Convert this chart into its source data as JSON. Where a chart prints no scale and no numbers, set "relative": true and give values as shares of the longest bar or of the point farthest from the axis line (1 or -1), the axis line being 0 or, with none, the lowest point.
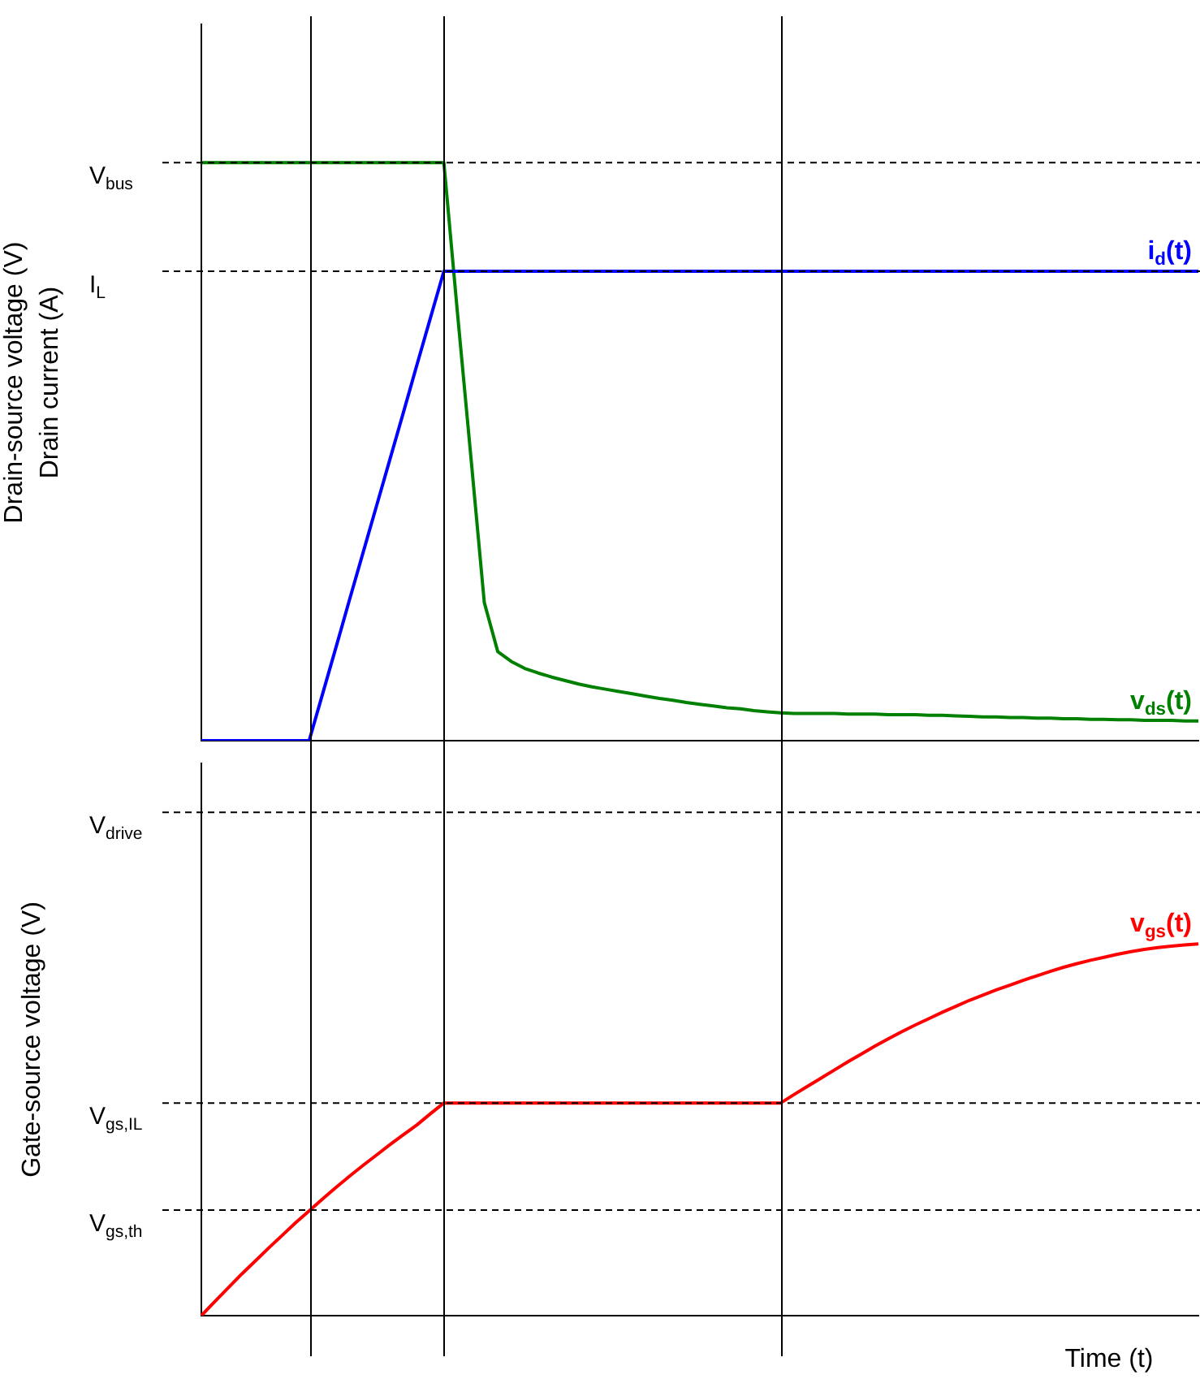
{
  "chart_data": [
    {
      "type": "line",
      "ylabel": "Drain-source voltage (V)\nDrain current (A)",
      "relative": true,
      "tick_labels": false,
      "legend": false,
      "grid": false,
      "marker": "none",
      "line_style": "solid",
      "categories": [
        null,
        null,
        null,
        null,
        null,
        null,
        null,
        null,
        null,
        null,
        null,
        null,
        null,
        null,
        null,
        null,
        null,
        null,
        null,
        null,
        null,
        null,
        null,
        null,
        null,
        null,
        null,
        null,
        null,
        null,
        null,
        null,
        null,
        null,
        null,
        null,
        null,
        null,
        null,
        null,
        null,
        null,
        null,
        null,
        null,
        null,
        null,
        null,
        null,
        null,
        null,
        null,
        null,
        null,
        null,
        null,
        null,
        null,
        null,
        null,
        null,
        null,
        null,
        null,
        null,
        null,
        null,
        null,
        null,
        null,
        null,
        null,
        null,
        null,
        null
      ],
      "series": [
        {
          "name": "i$_{d}$(t)",
          "color": "#0000ff",
          "values": [
            0,
            0,
            0,
            0,
            0,
            0,
            0,
            0,
            0,
            0.081,
            0.162,
            0.244,
            0.325,
            0.406,
            0.487,
            0.568,
            0.65,
            0.731,
            0.812,
            0.812,
            0.812,
            0.812,
            0.812,
            0.812,
            0.812,
            0.812,
            0.812,
            0.812,
            0.812,
            0.812,
            0.812,
            0.812,
            0.812,
            0.812,
            0.812,
            0.812,
            0.812,
            0.812,
            0.812,
            0.812,
            0.812,
            0.812,
            0.812,
            0.812,
            0.812,
            0.812,
            0.812,
            0.812,
            0.812,
            0.812,
            0.812,
            0.812,
            0.812,
            0.812,
            0.812,
            0.812,
            0.812,
            0.812,
            0.812,
            0.812,
            0.812,
            0.812,
            0.812,
            0.812,
            0.812,
            0.812,
            0.812,
            0.812,
            0.812,
            0.812,
            0.812,
            0.812,
            0.812,
            0.812,
            0.812
          ]
        },
        {
          "name": "v$_{ds}$(t)",
          "color": "#008000",
          "values": [
            1,
            1,
            1,
            1,
            1,
            1,
            1,
            1,
            1,
            1,
            1,
            1,
            1,
            1,
            1,
            1,
            1,
            1,
            1,
            0.742,
            0.492,
            0.239,
            0.154,
            0.137,
            0.125,
            0.117,
            0.11,
            0.104,
            0.098,
            0.093,
            0.089,
            0.085,
            0.081,
            0.077,
            0.073,
            0.07,
            0.066,
            0.063,
            0.06,
            0.057,
            0.055,
            0.052,
            0.05,
            0.048,
            0.047,
            0.047,
            0.047,
            0.047,
            0.046,
            0.046,
            0.046,
            0.045,
            0.045,
            0.045,
            0.044,
            0.044,
            0.043,
            0.042,
            0.041,
            0.041,
            0.04,
            0.04,
            0.039,
            0.039,
            0.038,
            0.038,
            0.037,
            0.037,
            0.036,
            0.036,
            0.035,
            0.035,
            0.035,
            0.034,
            0.034
          ]
        }
      ],
      "ref_lines": [
        {
          "axis": "y",
          "value": 1,
          "label": "V$_{bus}$",
          "line_style": "dashed",
          "color": "#000000"
        },
        {
          "axis": "y",
          "value": 0.812,
          "label": "I$_{L}$",
          "line_style": "dashed",
          "color": "#000000"
        }
      ]
    },
    {
      "type": "line",
      "ylabel": "Gate-source voltage (V)",
      "xlabel": "Time (t)",
      "relative": true,
      "tick_labels": false,
      "legend": false,
      "grid": false,
      "marker": "none",
      "line_style": "solid",
      "categories": [
        null,
        null,
        null,
        null,
        null,
        null,
        null,
        null,
        null,
        null,
        null,
        null,
        null,
        null,
        null,
        null,
        null,
        null,
        null,
        null,
        null,
        null,
        null,
        null,
        null,
        null,
        null,
        null,
        null,
        null,
        null,
        null,
        null,
        null,
        null,
        null,
        null,
        null,
        null,
        null,
        null,
        null,
        null,
        null,
        null,
        null,
        null,
        null,
        null,
        null,
        null,
        null,
        null,
        null,
        null,
        null,
        null,
        null,
        null,
        null,
        null,
        null,
        null,
        null,
        null,
        null,
        null,
        null,
        null,
        null,
        null,
        null,
        null,
        null,
        null
      ],
      "series": [
        {
          "name": "v$_{gs}$(t)",
          "color": "#ff0000",
          "values": [
            0,
            0.038,
            0.075,
            0.112,
            0.147,
            0.182,
            0.216,
            0.25,
            0.282,
            0.314,
            0.345,
            0.375,
            0.404,
            0.432,
            0.46,
            0.487,
            0.513,
            0.543,
            0.572,
            0.572,
            0.572,
            0.572,
            0.572,
            0.572,
            0.572,
            0.572,
            0.572,
            0.572,
            0.572,
            0.572,
            0.572,
            0.572,
            0.572,
            0.572,
            0.572,
            0.572,
            0.572,
            0.572,
            0.572,
            0.572,
            0.572,
            0.572,
            0.572,
            0.572,
            0.595,
            0.617,
            0.639,
            0.661,
            0.683,
            0.704,
            0.725,
            0.745,
            0.764,
            0.782,
            0.799,
            0.816,
            0.832,
            0.848,
            0.862,
            0.876,
            0.889,
            0.902,
            0.914,
            0.926,
            0.937,
            0.947,
            0.956,
            0.964,
            0.972,
            0.979,
            0.985,
            0.99,
            0.994,
            0.997,
            1
          ]
        }
      ],
      "ref_lines": [
        {
          "axis": "y",
          "value": 1.354,
          "label": "V$_{drive}$",
          "line_style": "dashed",
          "color": "#000000"
        },
        {
          "axis": "y",
          "value": 0.572,
          "label": "V$_{gs,IL}$",
          "line_style": "dashed",
          "color": "#000000"
        },
        {
          "axis": "y",
          "value": 0.284,
          "label": "V$_{gs,th}$",
          "line_style": "dashed",
          "color": "#000000"
        }
      ]
    }
  ]
}
